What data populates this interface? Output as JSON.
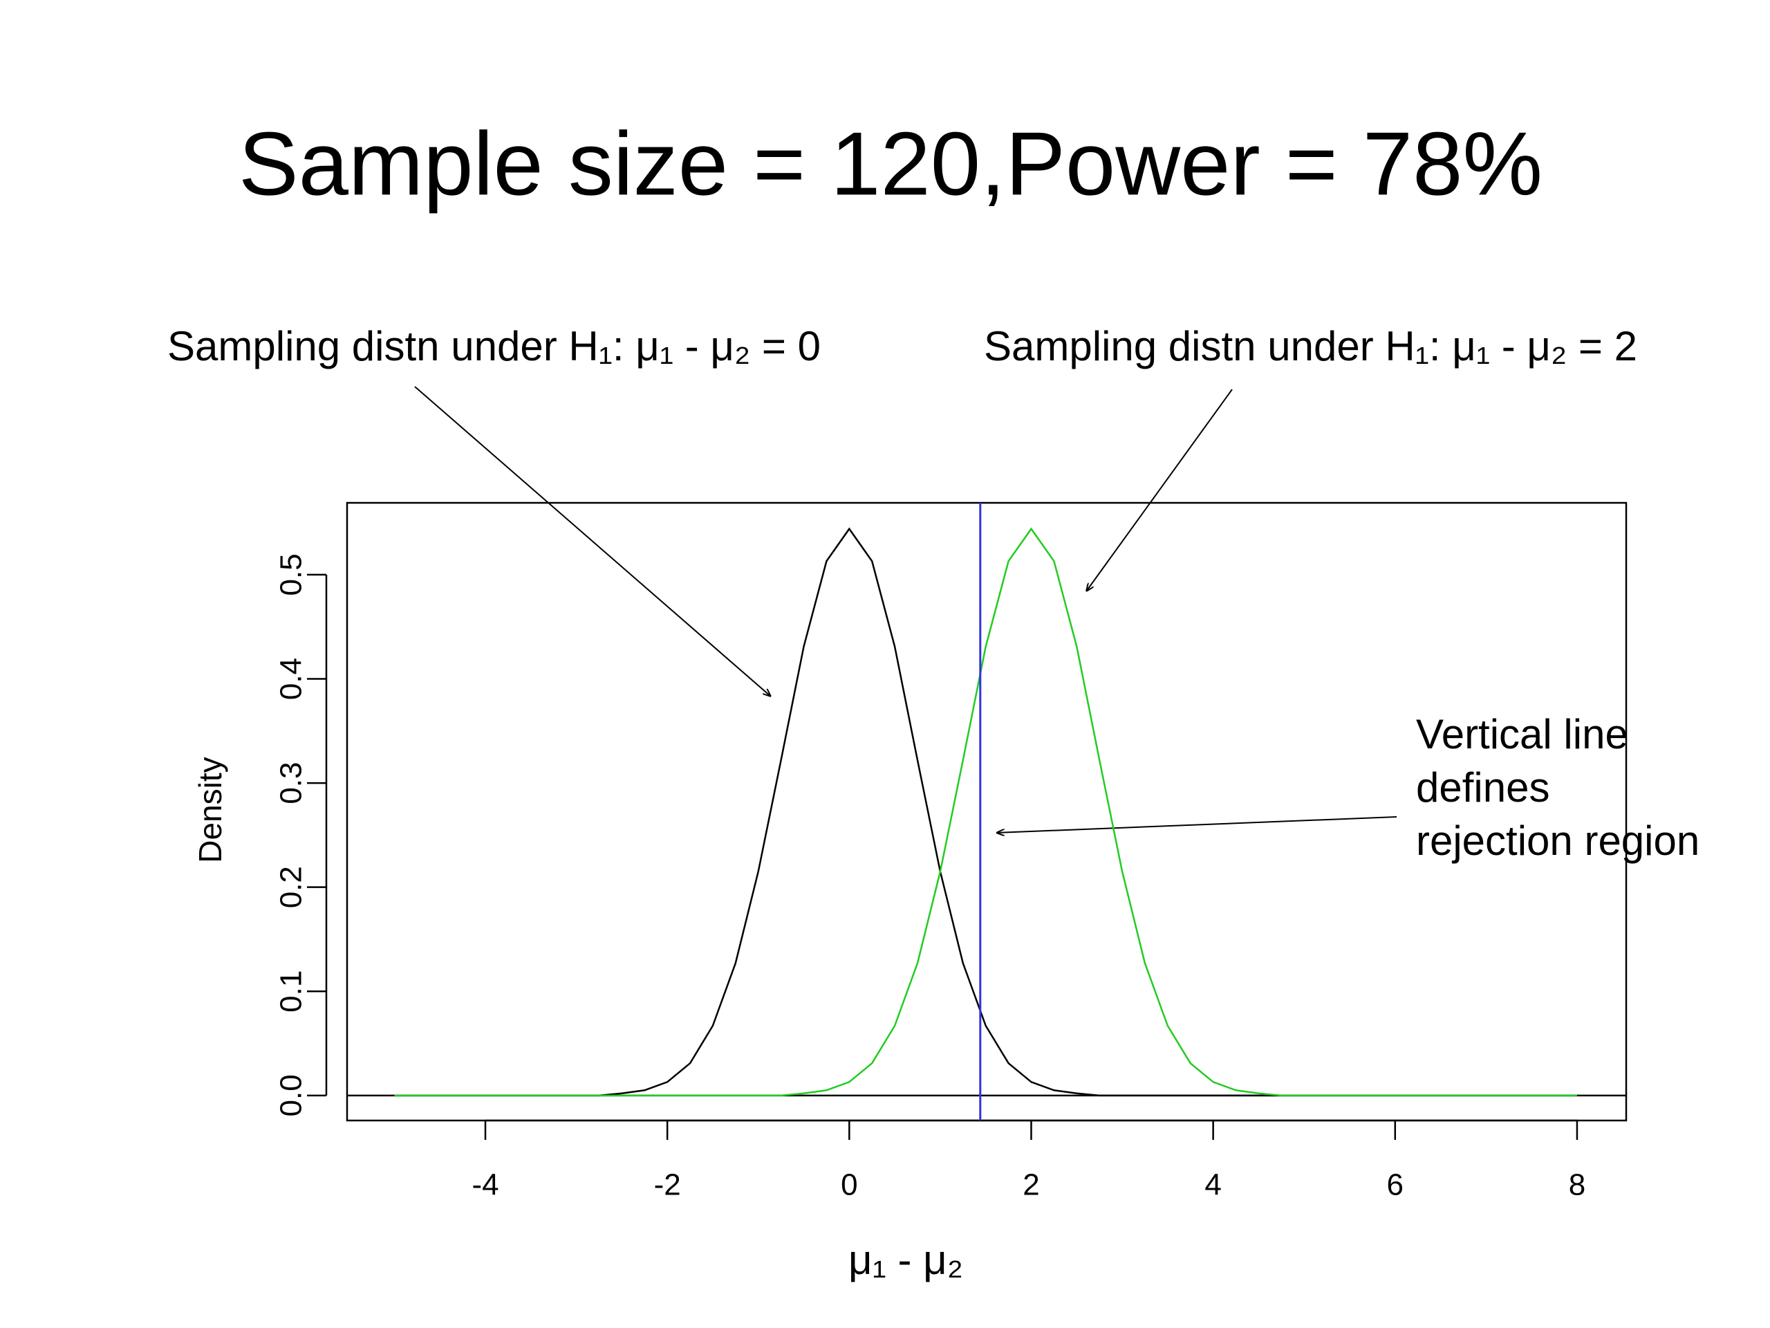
{
  "chart_data": {
    "type": "line",
    "title": "Sample size = 120,Power = 78%",
    "x_label": "μ₁ - μ₂",
    "y_label": "Density",
    "annotations": [
      "Sampling distn under H₁:  μ₁ - μ₂ = 0",
      "Sampling distn under H₁:  μ₁ - μ₂ = 2",
      [
        "Vertical line",
        "defines",
        "rejection region"
      ]
    ],
    "x": [
      -5,
      -4.75,
      -4.5,
      -4.25,
      -4,
      -3.75,
      -3.5,
      -3.25,
      -3,
      -2.75,
      -2.5,
      -2.25,
      -2,
      -1.75,
      -1.5,
      -1.25,
      -1,
      -0.75,
      -0.5,
      -0.25,
      0,
      0.25,
      0.5,
      0.75,
      1,
      1.25,
      1.5,
      1.75,
      2,
      2.25,
      2.5,
      2.75,
      3,
      3.25,
      3.5,
      3.75,
      4,
      4.25,
      4.5,
      4.75,
      5,
      5.25,
      5.5,
      5.75,
      6,
      6.25,
      6.5,
      6.75,
      7,
      7.25,
      7.5,
      7.75,
      8
    ],
    "series": [
      {
        "color": "#000000",
        "values": [
          0,
          0,
          0,
          0,
          0,
          0,
          0,
          0,
          0,
          0,
          0.002,
          0.005,
          0.013,
          0.031,
          0.067,
          0.127,
          0.215,
          0.322,
          0.431,
          0.513,
          0.544,
          0.513,
          0.431,
          0.322,
          0.215,
          0.127,
          0.067,
          0.031,
          0.013,
          0.005,
          0.002,
          0,
          0,
          0,
          0,
          0,
          0,
          0,
          0,
          0,
          0,
          0,
          0,
          0,
          0,
          0,
          0,
          0,
          0,
          0,
          0,
          0,
          0
        ]
      },
      {
        "color": "#22cc22",
        "values": [
          0,
          0,
          0,
          0,
          0,
          0,
          0,
          0,
          0,
          0,
          0,
          0,
          0,
          0,
          0,
          0,
          0,
          0,
          0.002,
          0.005,
          0.013,
          0.031,
          0.067,
          0.127,
          0.215,
          0.322,
          0.431,
          0.513,
          0.544,
          0.513,
          0.431,
          0.322,
          0.215,
          0.127,
          0.067,
          0.031,
          0.013,
          0.005,
          0.002,
          0,
          0,
          0,
          0,
          0,
          0,
          0,
          0,
          0,
          0,
          0,
          0,
          0,
          0
        ]
      }
    ],
    "vline": {
      "x": 1.44,
      "color": "#3333dd"
    },
    "hline": 0,
    "xlim": [
      -5.52,
      8.54
    ],
    "ylim": [
      -0.024,
      0.569
    ],
    "xticks": [
      -4,
      -2,
      0,
      2,
      4,
      6,
      8
    ],
    "yticks": [
      {
        "value": 0,
        "label": "0.0"
      },
      0.1,
      0.2,
      0.3,
      0.4,
      0.5
    ]
  }
}
